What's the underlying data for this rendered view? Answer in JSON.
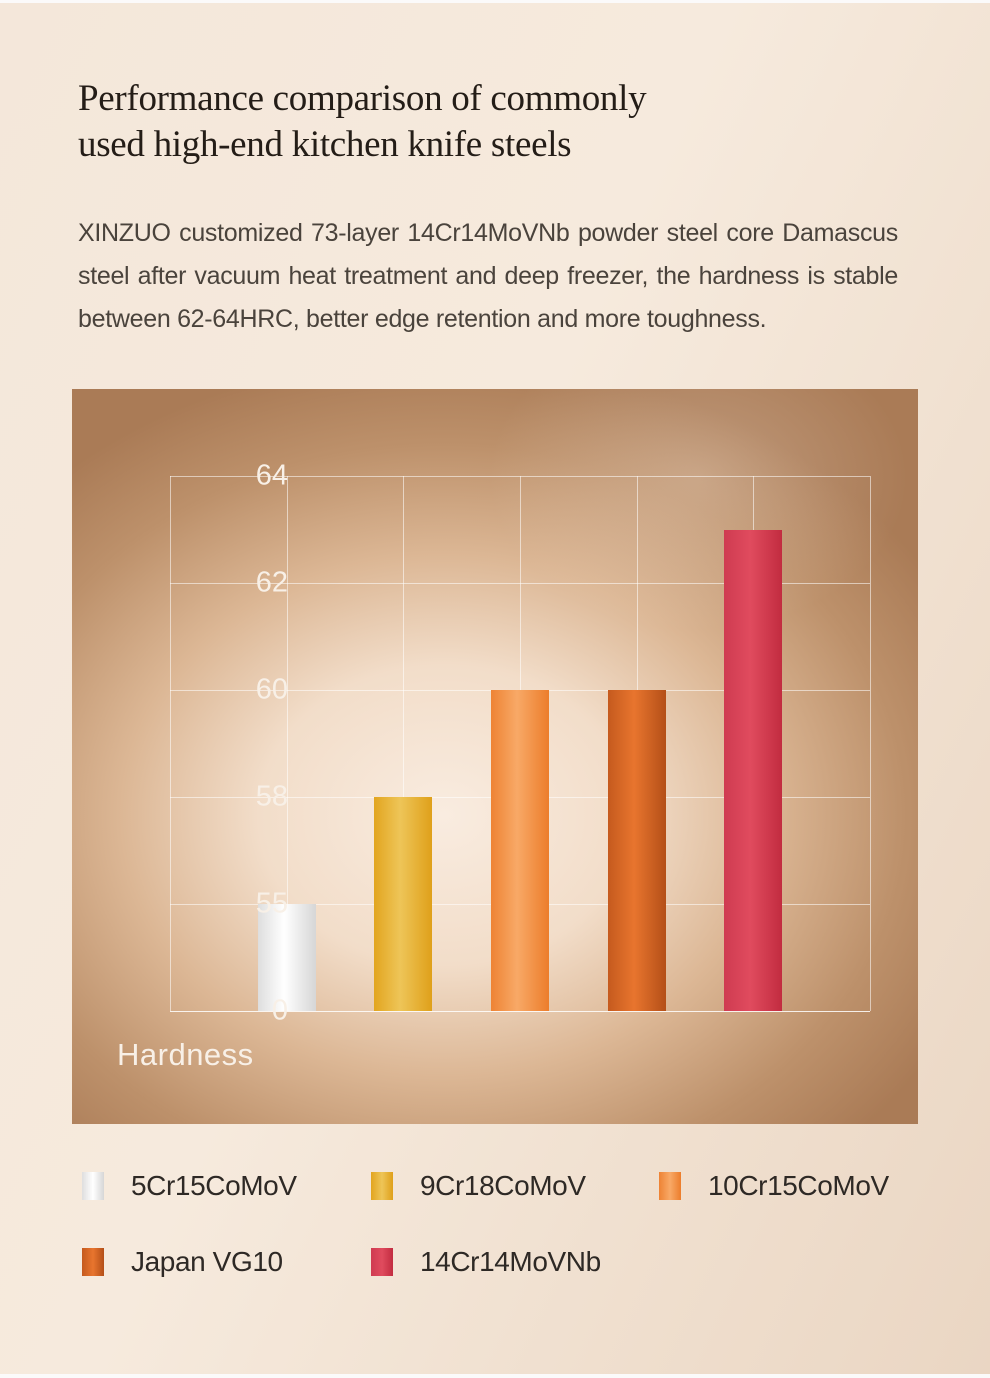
{
  "page": {
    "background_color": "#f2e5d8",
    "edge_strip_color": "#fbfafa"
  },
  "header": {
    "title_line1": "Performance comparison of commonly",
    "title_line2": "used high-end kitchen knife steels",
    "title_color": "#241d17"
  },
  "intro": {
    "line1": "XINZUO customized 73-layer 14Cr14MoVNb powder steel core Damascus",
    "line2": "steel after vacuum heat treatment and deep freezer, the hardness is stable",
    "line3": "between 62-64HRC, better edge retention and more toughness.",
    "text_color": "#4a433c"
  },
  "chart_data": {
    "type": "bar",
    "title": "",
    "categories": [
      "5Cr15CoMoV",
      "9Cr18CoMoV",
      "10Cr15CoMoV",
      "Japan VG10",
      "14Cr14MoVNb"
    ],
    "values": [
      55,
      58,
      60,
      60,
      63
    ],
    "xlabel": "Hardness",
    "ylabel": "",
    "y_ticks": [
      64,
      62,
      60,
      58,
      55,
      0
    ],
    "axis_note": "ticks evenly spaced (non-linear scale), value 0 at baseline",
    "grid": true,
    "legend_position": "below-chart",
    "legend_rows": [
      3,
      2
    ],
    "panel_bg_center": "#f9ece0",
    "panel_bg_edge": "#aa7b56",
    "gridline_color": "rgba(255,255,255,0.55)",
    "tick_label_color": "#f8f0e7",
    "bar_color_stops": [
      [
        "#dedede",
        "#ffffff",
        "#d6d6d6"
      ],
      [
        "#e2a51f",
        "#eec558",
        "#dfa01a"
      ],
      [
        "#ee8334",
        "#f8a967",
        "#ec7d2b"
      ],
      [
        "#c55a1e",
        "#e8752e",
        "#b44f18"
      ],
      [
        "#cf3b51",
        "#e04b5e",
        "#c22c40"
      ]
    ]
  }
}
